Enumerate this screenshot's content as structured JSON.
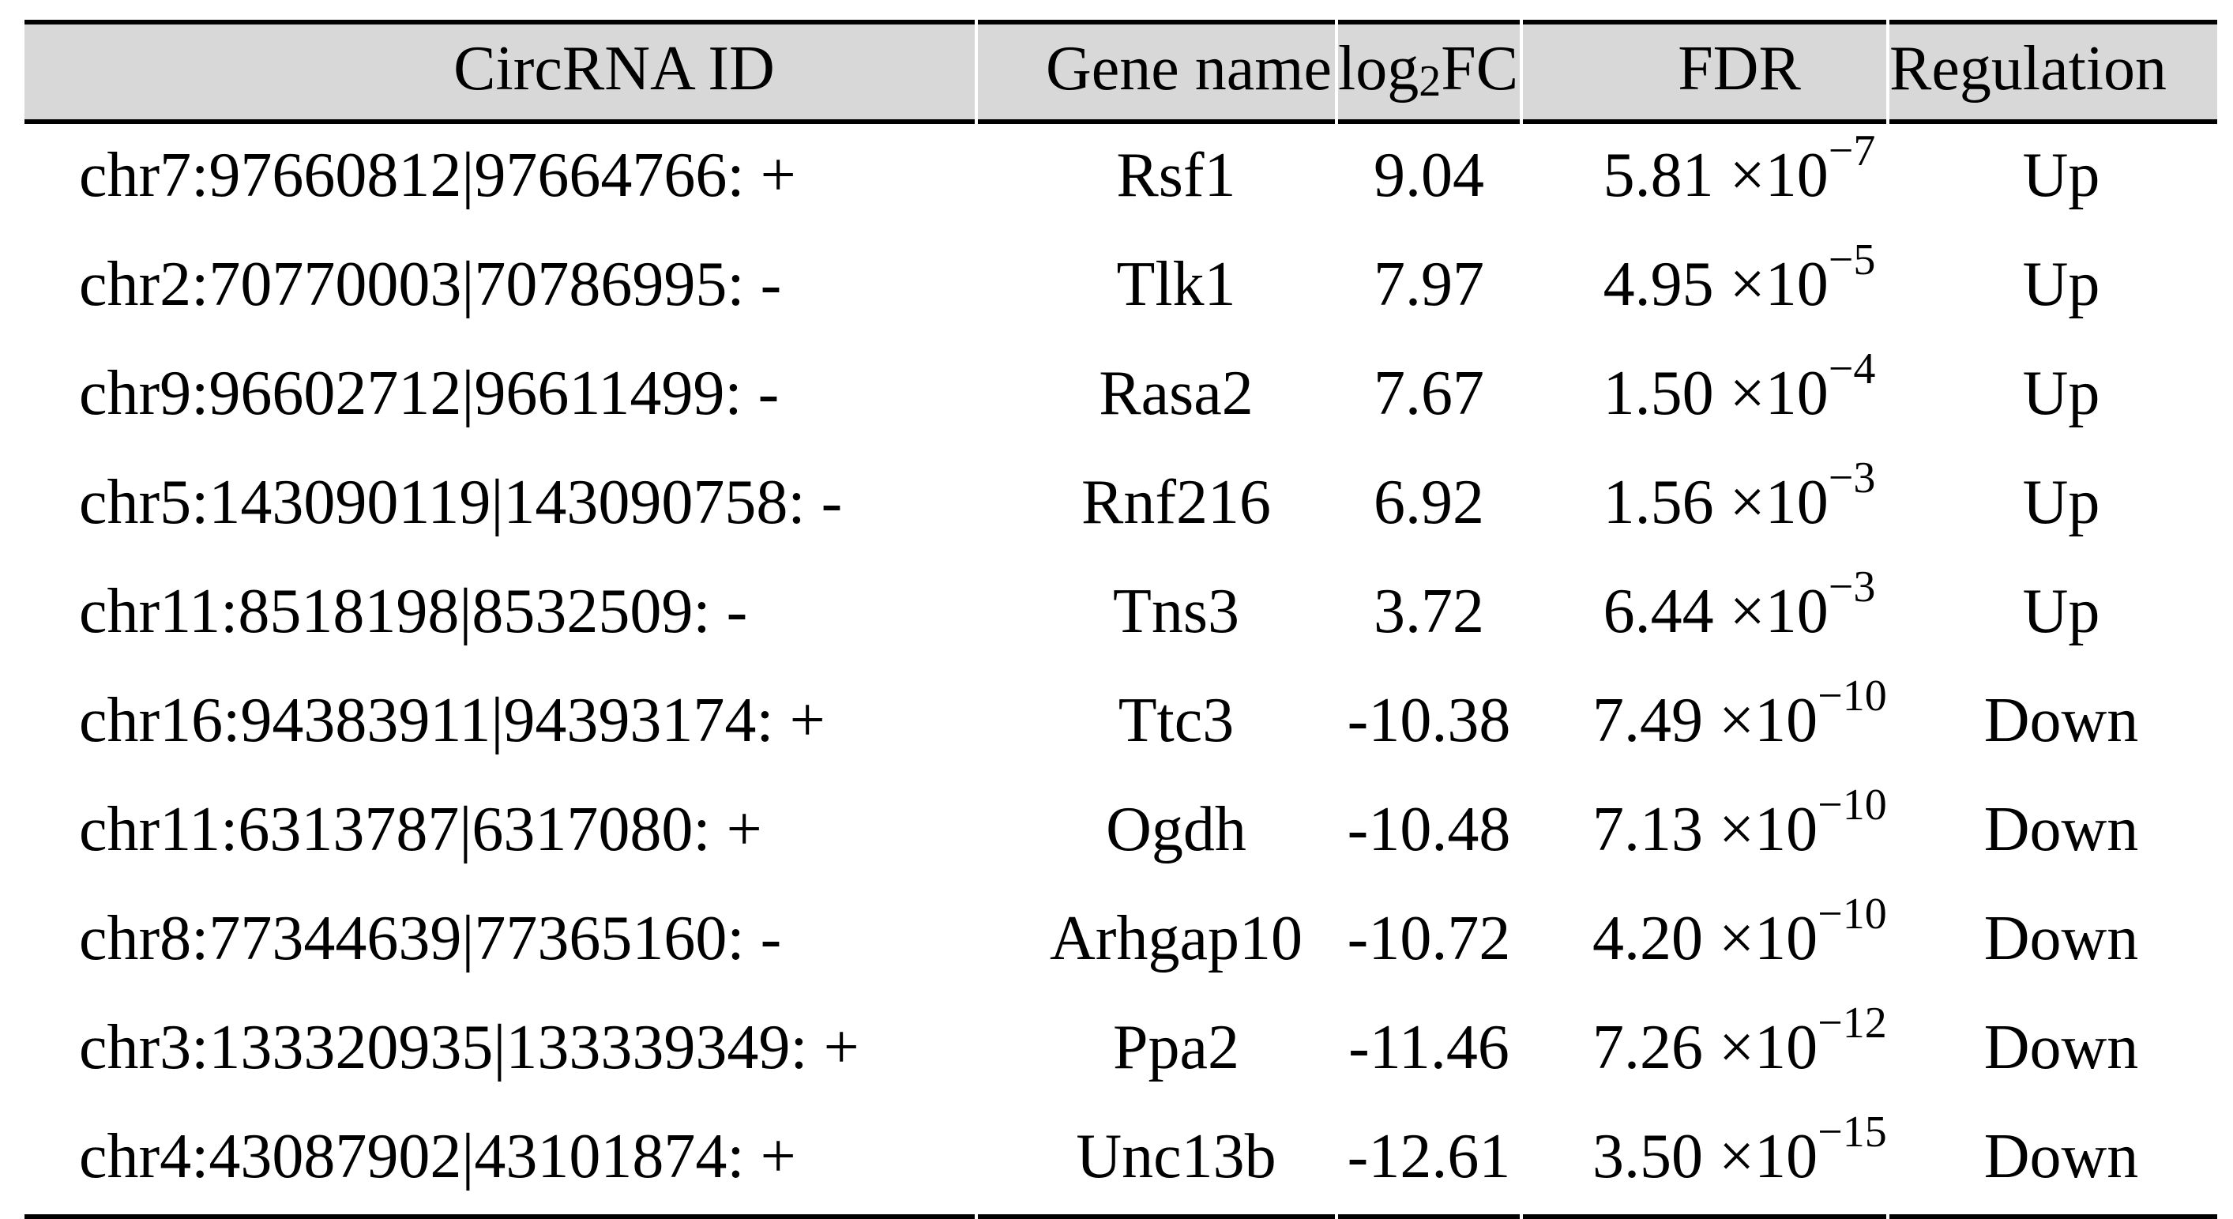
{
  "colors": {
    "header_bg": "#d8d8d8",
    "rule": "#000000",
    "text": "#000000",
    "page_bg": "#ffffff"
  },
  "table": {
    "headers": {
      "circrna_id": "CircRNA ID",
      "gene_name": "Gene name",
      "logfc_prefix": "log",
      "logfc_sub": "2",
      "logfc_suffix": "FC",
      "fdr": "FDR",
      "regulation": "Regulation"
    },
    "rows": [
      {
        "id": "chr7:97660812|97664766: +",
        "gene": "Rsf1",
        "logfc": "9.04",
        "fdr_base": "5.81 ×10",
        "fdr_exp": "−7",
        "regulation": "Up"
      },
      {
        "id": "chr2:70770003|70786995: -",
        "gene": "Tlk1",
        "logfc": "7.97",
        "fdr_base": "4.95 ×10",
        "fdr_exp": "−5",
        "regulation": "Up"
      },
      {
        "id": "chr9:96602712|96611499: -",
        "gene": "Rasa2",
        "logfc": "7.67",
        "fdr_base": "1.50 ×10",
        "fdr_exp": "−4",
        "regulation": "Up"
      },
      {
        "id": "chr5:143090119|143090758: -",
        "gene": "Rnf216",
        "logfc": "6.92",
        "fdr_base": "1.56 ×10",
        "fdr_exp": "−3",
        "regulation": "Up"
      },
      {
        "id": "chr11:8518198|8532509: -",
        "gene": "Tns3",
        "logfc": "3.72",
        "fdr_base": "6.44 ×10",
        "fdr_exp": "−3",
        "regulation": "Up"
      },
      {
        "id": "chr16:94383911|94393174: +",
        "gene": "Ttc3",
        "logfc": "-10.38",
        "fdr_base": "7.49 ×10",
        "fdr_exp": "−10",
        "regulation": "Down"
      },
      {
        "id": "chr11:6313787|6317080: +",
        "gene": "Ogdh",
        "logfc": "-10.48",
        "fdr_base": "7.13 ×10",
        "fdr_exp": "−10",
        "regulation": "Down"
      },
      {
        "id": "chr8:77344639|77365160: -",
        "gene": "Arhgap10",
        "logfc": "-10.72",
        "fdr_base": "4.20 ×10",
        "fdr_exp": "−10",
        "regulation": "Down"
      },
      {
        "id": "chr3:133320935|133339349: +",
        "gene": "Ppa2",
        "logfc": "-11.46",
        "fdr_base": "7.26 ×10",
        "fdr_exp": "−12",
        "regulation": "Down"
      },
      {
        "id": "chr4:43087902|43101874: +",
        "gene": "Unc13b",
        "logfc": "-12.61",
        "fdr_base": "3.50 ×10",
        "fdr_exp": "−15",
        "regulation": "Down"
      }
    ]
  }
}
